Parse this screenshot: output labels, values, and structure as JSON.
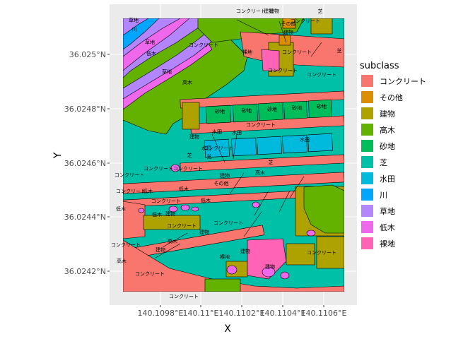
{
  "chart_data": {
    "type": "map",
    "xlabel": "X",
    "ylabel": "Y",
    "x_ticks": [
      "140.1098°E",
      "140.11°E",
      "140.1102°E",
      "140.1104°E",
      "140.1106°E"
    ],
    "y_ticks": [
      "36.0242°N",
      "36.0244°N",
      "36.0246°N",
      "36.0248°N",
      "36.025°N"
    ],
    "legend": {
      "title": "subclass",
      "placement": "right",
      "items": [
        {
          "label": "コンクリート",
          "color": "#F8766D"
        },
        {
          "label": "その他",
          "color": "#DB8E00"
        },
        {
          "label": "建物",
          "color": "#AEA200"
        },
        {
          "label": "高木",
          "color": "#64B200"
        },
        {
          "label": "砂地",
          "color": "#00BD5C"
        },
        {
          "label": "芝",
          "color": "#00C1A7"
        },
        {
          "label": "水田",
          "color": "#00BADE"
        },
        {
          "label": "川",
          "color": "#00A6FF"
        },
        {
          "label": "草地",
          "color": "#B385FF"
        },
        {
          "label": "低木",
          "color": "#EF67EB"
        },
        {
          "label": "裸地",
          "color": "#FF63B6"
        }
      ]
    },
    "map_labels": [
      "建物",
      "コンクリート",
      "建物",
      "芝",
      "川",
      "草地",
      "コンクリート",
      "その他",
      "建物",
      "草地",
      "コンクリート",
      "低木",
      "コンクリート",
      "裸地",
      "芝",
      "草地",
      "コンクリート",
      "高木",
      "コンクリート",
      "砂地",
      "砂地",
      "砂地",
      "砂地",
      "砂地",
      "コンクリート",
      "建物",
      "水田",
      "水田",
      "水田",
      "コンクリート",
      "水田",
      "芝",
      "芝",
      "コンクリート",
      "コンクリート",
      "建物",
      "高木",
      "芝",
      "コンクリート",
      "その他",
      "コンクリート",
      "低木",
      "低木",
      "低木",
      "低木",
      "低木",
      "コンクリート",
      "建物",
      "コンクリート",
      "コンクリート",
      "建物",
      "高木",
      "建物",
      "コンクリート",
      "コンクリート",
      "建物",
      "裸地",
      "建物",
      "コンクリート",
      "高木",
      "コンクリート"
    ],
    "grid": true
  }
}
